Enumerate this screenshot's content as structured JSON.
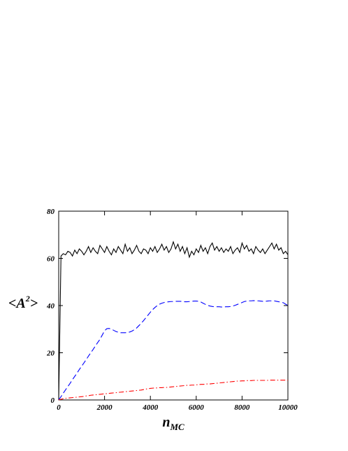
{
  "chart_data": {
    "type": "line",
    "xlabel": [
      "n",
      "MC"
    ],
    "ylabel": [
      "<A",
      "2",
      ">"
    ],
    "x": [
      0,
      100,
      200,
      300,
      400,
      500,
      600,
      700,
      800,
      900,
      1000,
      1100,
      1200,
      1300,
      1400,
      1500,
      1600,
      1700,
      1800,
      1900,
      2000,
      2100,
      2200,
      2300,
      2400,
      2500,
      2600,
      2700,
      2800,
      2900,
      3000,
      3100,
      3200,
      3300,
      3400,
      3500,
      3600,
      3700,
      3800,
      3900,
      4000,
      4100,
      4200,
      4300,
      4400,
      4500,
      4600,
      4700,
      4800,
      4900,
      5000,
      5100,
      5200,
      5300,
      5400,
      5500,
      5600,
      5700,
      5800,
      5900,
      6000,
      6100,
      6200,
      6300,
      6400,
      6500,
      6600,
      6700,
      6800,
      6900,
      7000,
      7100,
      7200,
      7300,
      7400,
      7500,
      7600,
      7700,
      7800,
      7900,
      8000,
      8100,
      8200,
      8300,
      8400,
      8500,
      8600,
      8700,
      8800,
      8900,
      9000,
      9100,
      9200,
      9300,
      9400,
      9500,
      9600,
      9700,
      9800,
      9900,
      10000
    ],
    "series": [
      {
        "color": "#000000",
        "dash": "none",
        "values": [
          0,
          61,
          62,
          61.5,
          63,
          62.5,
          61,
          63.5,
          62,
          64,
          63,
          61.5,
          63,
          65,
          62.5,
          64.5,
          63,
          62,
          65.5,
          64,
          62.5,
          65,
          63,
          61.5,
          64,
          62.5,
          65,
          63.5,
          62,
          66,
          63,
          64.5,
          62,
          63.5,
          65.5,
          63,
          62,
          64,
          63.5,
          62,
          64.5,
          63,
          65,
          62.5,
          64,
          66,
          63.5,
          65,
          62.5,
          64,
          67,
          64,
          66,
          63,
          65,
          62,
          64.5,
          60.5,
          63,
          61.5,
          64,
          62.5,
          65.5,
          63,
          64.5,
          62,
          65,
          66.5,
          63.5,
          65,
          63,
          64.5,
          62.5,
          64,
          63,
          65,
          62,
          63.5,
          64.5,
          62.5,
          66.5,
          64,
          65.5,
          63,
          64,
          62,
          65,
          63.5,
          62.5,
          64,
          62,
          63.5,
          65,
          66.5,
          64,
          66,
          63.5,
          64.5,
          62,
          63,
          61.5
        ]
      },
      {
        "color": "#0000ff",
        "dash": "8,4",
        "values": [
          0,
          1.4,
          2.9,
          4.3,
          5.7,
          7.1,
          8.6,
          10,
          11.4,
          12.9,
          14.3,
          15.7,
          17.1,
          18.6,
          20,
          21.4,
          22.9,
          24.3,
          25.7,
          27.5,
          29.3,
          30.2,
          30.3,
          30,
          29.5,
          29,
          28.7,
          28.5,
          28.5,
          28.5,
          28.6,
          28.8,
          29.2,
          29.8,
          30.5,
          31.5,
          32.5,
          33.6,
          34.8,
          36,
          37.2,
          38.3,
          39.2,
          40,
          40.6,
          41,
          41.3,
          41.5,
          41.6,
          41.7,
          41.7,
          41.8,
          41.8,
          41.8,
          41.7,
          41.6,
          41.6,
          41.7,
          41.8,
          41.9,
          41.9,
          41.8,
          41.5,
          41,
          40.5,
          40.1,
          39.8,
          39.6,
          39.5,
          39.5,
          39.5,
          39.4,
          39.4,
          39.5,
          39.5,
          39.6,
          39.8,
          40.1,
          40.5,
          40.9,
          41.3,
          41.7,
          41.9,
          42,
          42,
          42.1,
          42,
          42,
          41.9,
          41.8,
          41.8,
          41.9,
          42,
          42,
          42,
          41.8,
          41.6,
          41.5,
          41.2,
          40.6,
          40
        ]
      },
      {
        "color": "#ff0000",
        "dash": "7,3,1.5,3",
        "values": [
          0,
          0.3,
          0.5,
          0.7,
          0.8,
          0.9,
          1.0,
          1.1,
          1.2,
          1.3,
          1.4,
          1.5,
          1.7,
          1.8,
          2.0,
          2.1,
          2.2,
          2.3,
          2.4,
          2.5,
          2.6,
          2.7,
          2.8,
          2.9,
          3.0,
          3.1,
          3.2,
          3.3,
          3.4,
          3.5,
          3.6,
          3.7,
          3.8,
          3.9,
          4.0,
          4.1,
          4.2,
          4.4,
          4.6,
          4.8,
          4.9,
          5.0,
          5.1,
          5.1,
          5.2,
          5.2,
          5.3,
          5.3,
          5.4,
          5.5,
          5.6,
          5.7,
          5.8,
          5.9,
          6.0,
          6.1,
          6.2,
          6.2,
          6.3,
          6.3,
          6.4,
          6.5,
          6.6,
          6.6,
          6.7,
          6.8,
          6.8,
          6.9,
          7.0,
          7.1,
          7.2,
          7.3,
          7.4,
          7.5,
          7.6,
          7.7,
          7.8,
          7.9,
          8.0,
          8.0,
          8.1,
          8.1,
          8.2,
          8.2,
          8.2,
          8.3,
          8.3,
          8.3,
          8.3,
          8.3,
          8.3,
          8.3,
          8.4,
          8.4,
          8.4,
          8.4,
          8.4,
          8.4,
          8.4,
          8.4,
          8.4
        ]
      }
    ],
    "xlim": [
      0,
      10000
    ],
    "xticks": [
      0,
      2000,
      4000,
      6000,
      8000,
      10000
    ],
    "ylim": [
      0,
      80
    ],
    "yticks": [
      0,
      20,
      40,
      60,
      80
    ]
  }
}
